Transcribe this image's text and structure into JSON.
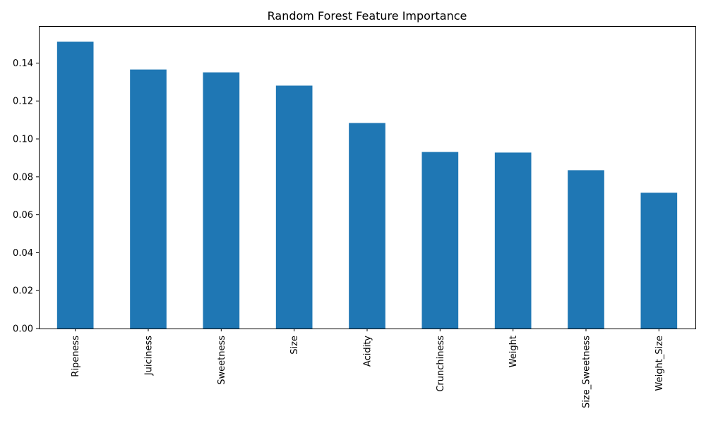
{
  "colors": {
    "bar": "#1f77b4",
    "axis": "#000000",
    "background": "#ffffff"
  },
  "chart_data": {
    "type": "bar",
    "title": "Random Forest Feature Importance",
    "xlabel": "",
    "ylabel": "",
    "categories": [
      "Ripeness",
      "Juiciness",
      "Sweetness",
      "Size",
      "Acidity",
      "Crunchiness",
      "Weight",
      "Size_Sweetness",
      "Weight_Size"
    ],
    "values": [
      0.1513,
      0.1366,
      0.1351,
      0.1281,
      0.1084,
      0.0931,
      0.0928,
      0.0835,
      0.0716
    ],
    "ylim": [
      0,
      0.1595
    ],
    "yticks": [
      0.0,
      0.02,
      0.04,
      0.06,
      0.08,
      0.1,
      0.12,
      0.14
    ],
    "ytick_labels": [
      "0.00",
      "0.02",
      "0.04",
      "0.06",
      "0.08",
      "0.10",
      "0.12",
      "0.14"
    ],
    "grid": false,
    "legend": "none"
  }
}
